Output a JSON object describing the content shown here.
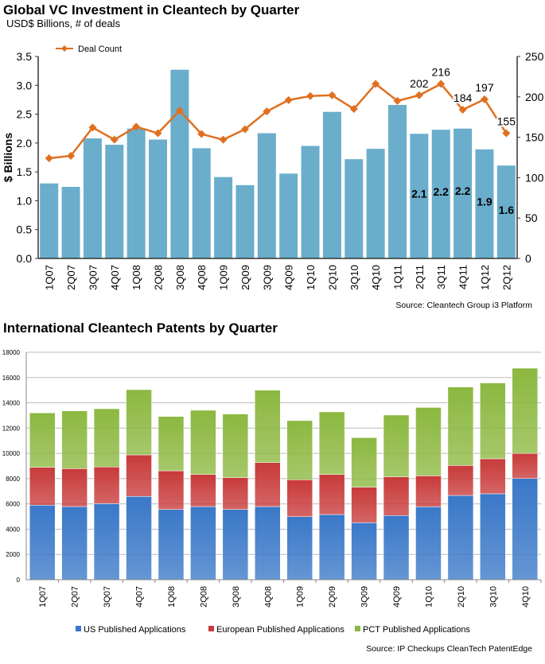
{
  "chart_data": [
    {
      "type": "bar",
      "title": "Global VC Investment in Cleantech by Quarter",
      "subtitle": "USD$ Billions, # of deals",
      "ylabel": "$ Billions",
      "ylim": [
        0,
        3.5
      ],
      "y_ticks": [
        "0.0",
        "0.5",
        "1.0",
        "1.5",
        "2.0",
        "2.5",
        "3.0",
        "3.5"
      ],
      "y2lim": [
        0,
        250
      ],
      "y2_ticks": [
        "0",
        "50",
        "100",
        "150",
        "200",
        "250"
      ],
      "grid": false,
      "legend_position": "top-left",
      "source": "Source: Cleantech Group i3 Platform",
      "categories": [
        "1Q07",
        "2Q07",
        "3Q07",
        "4Q07",
        "1Q08",
        "2Q08",
        "3Q08",
        "4Q08",
        "1Q09",
        "2Q09",
        "3Q09",
        "4Q09",
        "1Q10",
        "2Q10",
        "3Q10",
        "4Q10",
        "1Q11",
        "2Q11",
        "3Q11",
        "4Q11",
        "1Q12",
        "2Q12"
      ],
      "bar_values": [
        1.3,
        1.24,
        2.08,
        1.97,
        2.25,
        2.06,
        3.27,
        1.91,
        1.41,
        1.27,
        2.17,
        1.47,
        1.95,
        2.54,
        1.72,
        1.9,
        2.66,
        2.16,
        2.23,
        2.25,
        1.89,
        1.61
      ],
      "bar_color": "#6aaecb",
      "bar_labels": {
        "2Q11": "2.1",
        "3Q11": "2.2",
        "4Q11": "2.2",
        "1Q12": "1.9",
        "2Q12": "1.6"
      },
      "line_series": {
        "name": "Deal Count",
        "axis": "right",
        "color": "#e07020",
        "values": [
          124,
          127,
          162,
          147,
          163,
          155,
          183,
          154,
          147,
          160,
          182,
          196,
          201,
          202,
          185,
          216,
          195,
          202,
          216,
          184,
          197,
          155
        ],
        "point_labels": {
          "2Q11": "202",
          "3Q11": "216",
          "4Q11": "184",
          "1Q12": "197",
          "2Q12": "155"
        }
      }
    },
    {
      "type": "bar",
      "stacked": true,
      "title": "International Cleantech Patents by Quarter",
      "ylim": [
        0,
        18000
      ],
      "y_ticks": [
        "0",
        "2000",
        "4000",
        "6000",
        "8000",
        "10000",
        "12000",
        "14000",
        "16000",
        "18000"
      ],
      "grid": true,
      "legend_position": "bottom",
      "source": "Source: IP Checkups CleanTech PatentEdge",
      "categories": [
        "1Q07",
        "2Q07",
        "3Q07",
        "4Q07",
        "1Q08",
        "2Q08",
        "3Q08",
        "4Q08",
        "1Q09",
        "2Q09",
        "3Q09",
        "4Q09",
        "1Q10",
        "2Q10",
        "3Q10",
        "4Q10"
      ],
      "series": [
        {
          "name": "US Published Applications",
          "color": "#3a78c8",
          "values": [
            5900,
            5790,
            6020,
            6590,
            5560,
            5790,
            5560,
            5790,
            4990,
            5160,
            4510,
            5080,
            5770,
            6670,
            6800,
            8010
          ]
        },
        {
          "name": "European Published Applications",
          "color": "#c83a3a",
          "values": [
            3000,
            3000,
            2900,
            3290,
            3060,
            2540,
            2520,
            3480,
            2920,
            3170,
            2810,
            3060,
            2450,
            2370,
            2770,
            1990
          ]
        },
        {
          "name": "PCT Published Applications",
          "color": "#8cb840",
          "values": [
            4300,
            4570,
            4610,
            5160,
            4300,
            5080,
            5030,
            5730,
            4680,
            4950,
            3920,
            4890,
            5410,
            6210,
            6000,
            6740
          ]
        }
      ]
    }
  ]
}
